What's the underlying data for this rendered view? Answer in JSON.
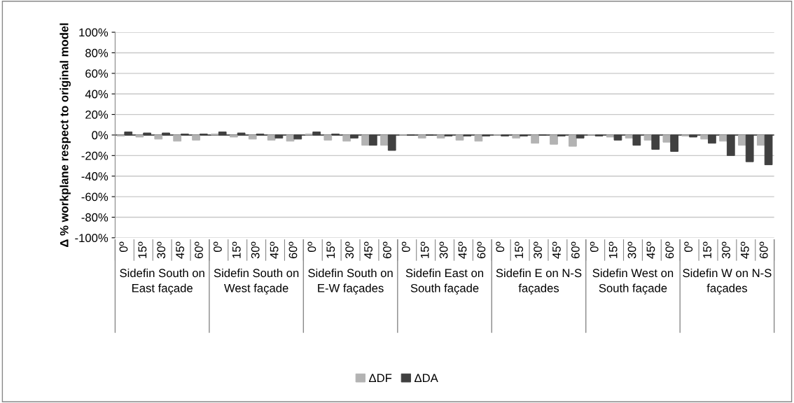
{
  "chart_data": {
    "type": "bar",
    "ylabel": "Δ % workplane respect to original model",
    "categories": [
      "0º",
      "15º",
      "30º",
      "45º",
      "60º",
      "0º",
      "15º",
      "30º",
      "45º",
      "60º",
      "0º",
      "15º",
      "30º",
      "45º",
      "60º",
      "0º",
      "15º",
      "30º",
      "45º",
      "60º",
      "0º",
      "15º",
      "30º",
      "45º",
      "60º",
      "0º",
      "15º",
      "30º",
      "45º",
      "60º",
      "0º",
      "15º",
      "30º",
      "45º",
      "60º"
    ],
    "series": [
      {
        "name": "ΔDF",
        "color": "#b3b3b3",
        "values": [
          -1,
          -2,
          -4,
          -6,
          -5,
          1,
          -2,
          -4,
          -5,
          -6,
          1,
          -5,
          -6,
          -10,
          -10,
          0,
          -3,
          -3,
          -5,
          -6,
          0,
          -3,
          -8,
          -9,
          -11,
          0,
          -2,
          -3,
          -5,
          -7,
          -1,
          -4,
          -6,
          -10,
          -10
        ]
      },
      {
        "name": "ΔDA",
        "color": "#404040",
        "values": [
          3,
          2,
          2,
          1,
          1,
          3,
          2,
          1,
          -3,
          -4,
          3,
          1,
          -3,
          -10,
          -15,
          0,
          0,
          -1,
          -1,
          -1,
          -1,
          -1,
          0,
          -1,
          -3,
          -1,
          -5,
          -10,
          -14,
          -16,
          -2,
          -8,
          -20,
          -26,
          -29
        ]
      }
    ],
    "annotations": [
      "Sidefin South on East façade",
      "Sidefin South on West façade",
      "Sidefin South on E-W façades",
      "Sidefin East on South façade",
      "Sidefin E on N-S façades",
      "Sidefin West on South façade",
      "Sidefin W on N-S façades"
    ],
    "ylim": [
      -100,
      100
    ],
    "yticks": [
      {
        "value": -100,
        "label": "-100%"
      },
      {
        "value": -80,
        "label": "-80%"
      },
      {
        "value": -60,
        "label": "-60%"
      },
      {
        "value": -40,
        "label": "-40%"
      },
      {
        "value": -20,
        "label": "-20%"
      },
      {
        "value": 0,
        "label": "0%"
      },
      {
        "value": 20,
        "label": "20%"
      },
      {
        "value": 40,
        "label": "40%"
      },
      {
        "value": 60,
        "label": "60%"
      },
      {
        "value": 80,
        "label": "80%"
      },
      {
        "value": 100,
        "label": "100%"
      }
    ],
    "grid": "y",
    "legend": "bottom"
  }
}
